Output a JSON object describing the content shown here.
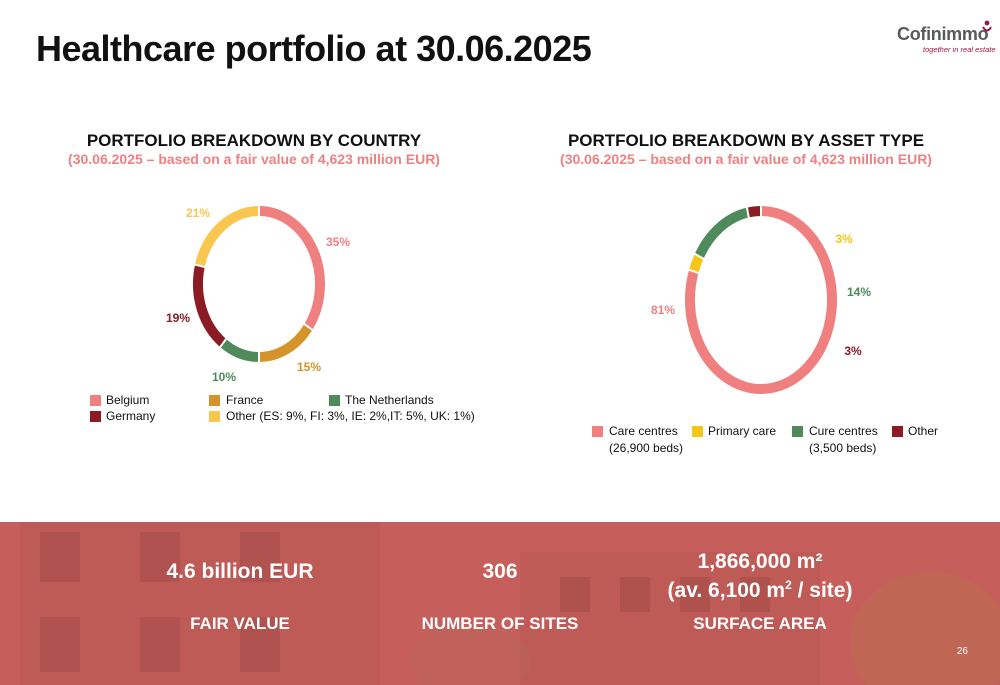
{
  "title": "Healthcare portfolio at 30.06.2025",
  "logo": {
    "name": "Cofinimmo",
    "tagline": "together in real estate"
  },
  "colors": {
    "belgium": "#f08080",
    "france": "#d4942a",
    "netherlands": "#4f8a5a",
    "germany": "#8b1c24",
    "other_country": "#f9c74f",
    "care_centres": "#f08080",
    "primary_care": "#f5c518",
    "cure_centres": "#4f8a5a",
    "other_asset": "#8b1c24",
    "band": "#c65f5b"
  },
  "chart_data": [
    {
      "type": "pie",
      "title": "PORTFOLIO BREAKDOWN BY COUNTRY",
      "subtitle": "(30.06.2025 – based on a fair value of 4,623 million EUR)",
      "slices": [
        {
          "name": "Belgium",
          "value": 35,
          "label": "35%"
        },
        {
          "name": "France",
          "value": 15,
          "label": "15%"
        },
        {
          "name": "The Netherlands",
          "value": 10,
          "label": "10%"
        },
        {
          "name": "Germany",
          "value": 19,
          "label": "19%"
        },
        {
          "name": "Other (ES: 9%, FI: 3%, IE: 2%,IT: 5%, UK: 1%)",
          "value": 21,
          "label": "21%"
        }
      ]
    },
    {
      "type": "pie",
      "title": "PORTFOLIO BREAKDOWN BY ASSET TYPE",
      "subtitle": "(30.06.2025 – based on a fair value of 4,623 million EUR)",
      "slices": [
        {
          "name": "Care centres",
          "note": "(26,900 beds)",
          "value": 81,
          "label": "81%"
        },
        {
          "name": "Primary care",
          "value": 3,
          "label": "3%"
        },
        {
          "name": "Cure centres",
          "note": "(3,500 beds)",
          "value": 14,
          "label": "14%"
        },
        {
          "name": "Other",
          "value": 3,
          "label": "3%"
        }
      ]
    }
  ],
  "kpis": [
    {
      "value": "4.6 billion EUR",
      "label": "FAIR VALUE"
    },
    {
      "value": "306",
      "label": "NUMBER OF SITES"
    },
    {
      "value_line1": "1,866,000 m²",
      "value_line2_pre": "(av. 6,100 m",
      "value_line2_sup": "2",
      "value_line2_post": " / site)",
      "label": "SURFACE AREA"
    }
  ],
  "page_number": "26"
}
